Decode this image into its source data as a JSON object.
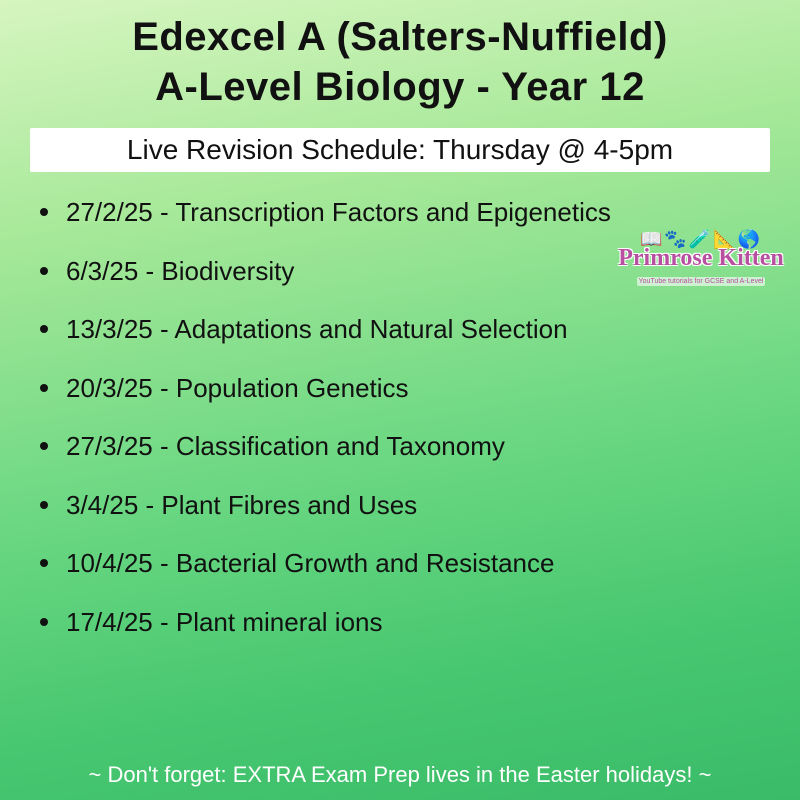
{
  "title_line1": "Edexcel A (Salters-Nuffield)",
  "title_line2": "A-Level Biology - Year 12",
  "subtitle": "Live Revision Schedule: Thursday @ 4-5pm",
  "schedule": [
    {
      "date": "27/2/25",
      "topic": "Transcription Factors and Epigenetics"
    },
    {
      "date": "6/3/25",
      "topic": "Biodiversity"
    },
    {
      "date": "13/3/25",
      "topic": "Adaptations and Natural Selection"
    },
    {
      "date": "20/3/25",
      "topic": "Population Genetics"
    },
    {
      "date": "27/3/25",
      "topic": "Classification and Taxonomy"
    },
    {
      "date": "3/4/25",
      "topic": "Plant Fibres and Uses"
    },
    {
      "date": "10/4/25",
      "topic": "Bacterial Growth and Resistance"
    },
    {
      "date": "17/4/25",
      "topic": "Plant mineral ions"
    }
  ],
  "footer": "~ Don't forget: EXTRA Exam Prep lives in the Easter holidays! ~",
  "brand": {
    "name": "Primrose Kitten",
    "tagline": "YouTube tutorials for GCSE and A-Level"
  },
  "style": {
    "background_gradient": [
      "#d6f5c0",
      "#a8e99a",
      "#6dd883",
      "#47c770",
      "#3abb68"
    ],
    "text_color": "#111111",
    "subtitle_bg": "#ffffff",
    "footer_color": "#ffffff",
    "brand_color": "#b84fa0",
    "title_fontsize": 40,
    "subtitle_fontsize": 28,
    "list_fontsize": 26,
    "footer_fontsize": 22
  }
}
